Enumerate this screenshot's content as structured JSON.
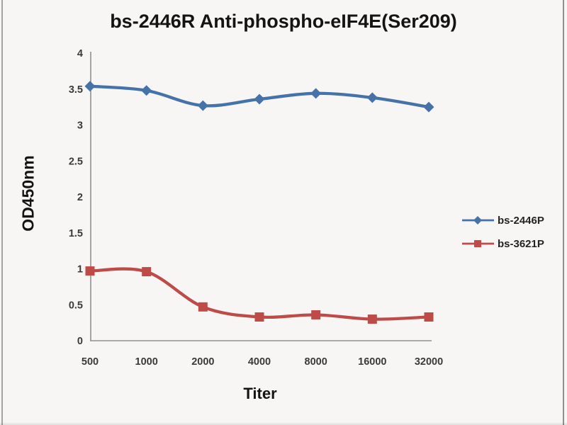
{
  "title": "bs-2446R Anti-phospho-eIF4E(Ser209)",
  "chart_data": {
    "type": "line",
    "title": "bs-2446R Anti-phospho-eIF4E(Ser209)",
    "xlabel": "Titer",
    "ylabel": "OD450nm",
    "categories": [
      "500",
      "1000",
      "2000",
      "4000",
      "8000",
      "16000",
      "32000"
    ],
    "series": [
      {
        "name": "bs-2446P",
        "color": "#4472A9",
        "marker": "diamond",
        "values": [
          3.54,
          3.48,
          3.27,
          3.36,
          3.44,
          3.38,
          3.25
        ]
      },
      {
        "name": "bs-3621P",
        "color": "#BE4B48",
        "marker": "square",
        "values": [
          0.97,
          0.96,
          0.47,
          0.33,
          0.36,
          0.3,
          0.33
        ]
      }
    ],
    "ylim": [
      0,
      4
    ],
    "ytick_step": 0.5,
    "yticks": [
      "0",
      "0.5",
      "1",
      "1.5",
      "2",
      "2.5",
      "3",
      "3.5",
      "4"
    ],
    "grid": false,
    "legend_position": "right",
    "line_style": "smooth"
  },
  "colors": {
    "background": "#f7f6f4",
    "axis": "#8f8f8f",
    "title_text": "#141414",
    "tick_text": "#3a3a3a",
    "series_blue": "#4472A9",
    "series_red": "#BE4B48"
  }
}
